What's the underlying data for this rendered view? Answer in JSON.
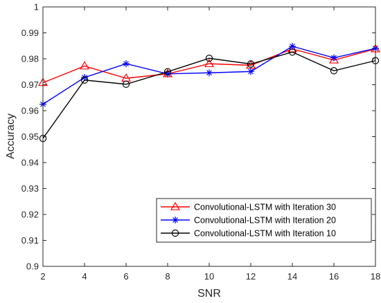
{
  "chart_data": {
    "type": "line",
    "xlabel": "SNR",
    "ylabel": "Accuracy",
    "xlim": [
      2,
      18
    ],
    "ylim": [
      0.9,
      1.0
    ],
    "xticks": [
      2,
      4,
      6,
      8,
      10,
      12,
      14,
      16,
      18
    ],
    "yticks": [
      0.9,
      0.91,
      0.92,
      0.93,
      0.94,
      0.95,
      0.96,
      0.97,
      0.98,
      0.99,
      1.0
    ],
    "xtick_labels": [
      "2",
      "4",
      "6",
      "8",
      "10",
      "12",
      "14",
      "16",
      "18"
    ],
    "ytick_labels": [
      "0.9",
      "0.91",
      "0.92",
      "0.93",
      "0.94",
      "0.95",
      "0.96",
      "0.97",
      "0.98",
      "0.99",
      "1"
    ],
    "grid": false,
    "legend_position": "bottom-right",
    "x": [
      2,
      4,
      6,
      8,
      10,
      12,
      14,
      16,
      18
    ],
    "series": [
      {
        "name": "Convolutional-LSTM with Iteration 30",
        "values": [
          0.9708,
          0.9772,
          0.9725,
          0.9742,
          0.9781,
          0.9775,
          0.9838,
          0.9795,
          0.9838
        ],
        "color": "#ff0000",
        "marker": "triangle"
      },
      {
        "name": "Convolutional-LSTM  with Iteration 20",
        "values": [
          0.9625,
          0.9728,
          0.9781,
          0.9742,
          0.9746,
          0.9751,
          0.9848,
          0.9804,
          0.984
        ],
        "color": "#0000ff",
        "marker": "asterisk"
      },
      {
        "name": "Convolutional-LSTM  with Iteration 10",
        "values": [
          0.9493,
          0.9718,
          0.9702,
          0.975,
          0.9802,
          0.978,
          0.9826,
          0.9754,
          0.9793
        ],
        "color": "#000000",
        "marker": "circle"
      }
    ]
  }
}
